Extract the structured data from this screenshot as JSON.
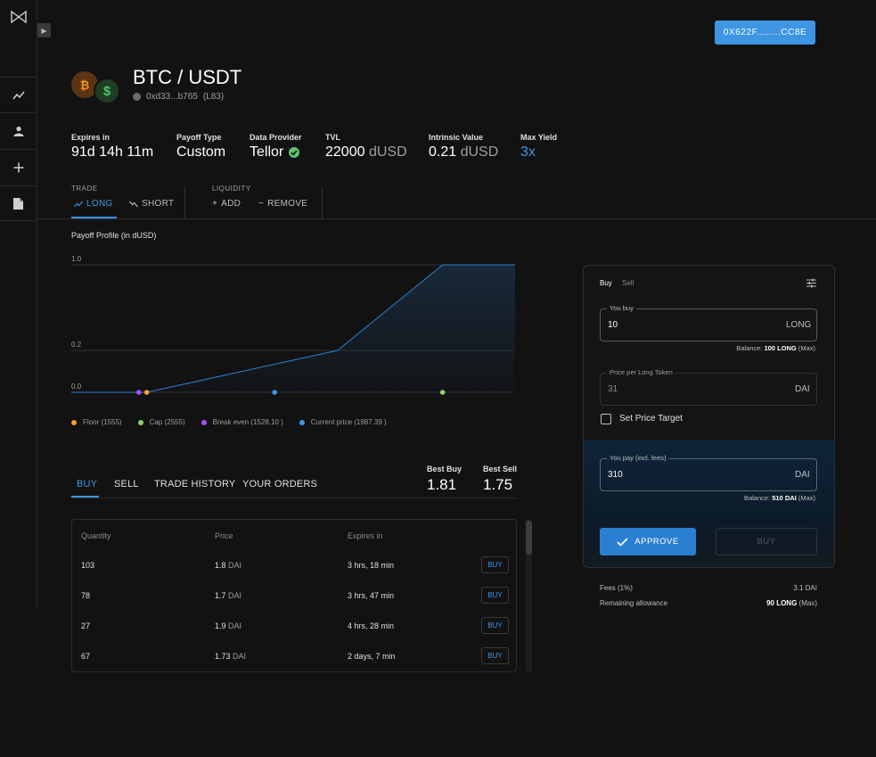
{
  "wallet": {
    "address": "0X622F........CC8E"
  },
  "header": {
    "pair": "BTC / USDT",
    "address": "0xd33...b765",
    "tag": "(L83)"
  },
  "stats": [
    {
      "label": "Expires in",
      "value": "91d 14h 11m",
      "unit": ""
    },
    {
      "label": "Payoff Type",
      "value": "Custom",
      "unit": ""
    },
    {
      "label": "Data Provider",
      "value": "Tellor",
      "unit": ""
    },
    {
      "label": "TVL",
      "value": "22000",
      "unit": "dUSD"
    },
    {
      "label": "Intrinsic Value",
      "value": "0.21",
      "unit": "dUSD"
    },
    {
      "label": "Max Yield",
      "value": "3x",
      "unit": ""
    }
  ],
  "trade_group": {
    "label": "TRADE",
    "long": "LONG",
    "short": "SHORT"
  },
  "liquidity_group": {
    "label": "LIQUIDITY",
    "add": "ADD",
    "remove": "REMOVE"
  },
  "payoff_title": "Payoff Profile (in dUSD)",
  "chart_data": {
    "type": "line",
    "title": "Payoff Profile (in dUSD)",
    "y_tick_labels": [
      "0.0",
      "0.2",
      "1.0"
    ],
    "x": [
      1300,
      1555,
      2200,
      2555,
      2800
    ],
    "y": [
      0.0,
      0.0,
      0.2,
      1.0,
      1.0
    ],
    "markers": [
      {
        "name": "Floor (1555)",
        "x": 1555,
        "color": "#f59e2e"
      },
      {
        "name": "Cap (2555)",
        "x": 2555,
        "color": "#8bd36a"
      },
      {
        "name": "Break even (1528.10 )",
        "x": 1528.1,
        "color": "#a64dff"
      },
      {
        "name": "Current price (1987.39 )",
        "x": 1987.39,
        "color": "#3d95e3"
      }
    ],
    "legend_position": "bottom-left",
    "grid": true
  },
  "legend": [
    {
      "label": "Floor (1555)",
      "color": "#f59e2e"
    },
    {
      "label": "Cap (2555)",
      "color": "#8bd36a"
    },
    {
      "label": "Break even (1528.10 )",
      "color": "#a64dff"
    },
    {
      "label": "Current price (1987.39 )",
      "color": "#3d95e3"
    }
  ],
  "order_tabs": [
    "BUY",
    "SELL",
    "TRADE HISTORY",
    "YOUR ORDERS"
  ],
  "best": {
    "buy_label": "Best Buy",
    "buy_value": "1.81",
    "sell_label": "Best Sell",
    "sell_value": "1.75"
  },
  "table": {
    "headers": [
      "Quantity",
      "Price",
      "Expires in"
    ],
    "unit": "DAI",
    "action": "BUY",
    "rows": [
      {
        "quantity": "103",
        "price": "1.8",
        "expires": "3 hrs, 18 min"
      },
      {
        "quantity": "78",
        "price": "1.7",
        "expires": "3 hrs, 47 min"
      },
      {
        "quantity": "27",
        "price": "1.9",
        "expires": "4 hrs, 28 min"
      },
      {
        "quantity": "67",
        "price": "1.73",
        "expires": "2 days, 7 min"
      }
    ]
  },
  "panel": {
    "tab_buy": "Buy",
    "tab_sell": "Sell",
    "you_buy_label": "You buy",
    "you_buy_value": "10",
    "you_buy_unit": "LONG",
    "balance1_prefix": "Balance:",
    "balance1_value": "100 LONG",
    "balance1_suffix": "(Max)",
    "price_label": "Price per Long Token",
    "price_value": "31",
    "price_unit": "DAI",
    "set_price_target": "Set Price Target",
    "you_pay_label": "You pay (incl. fees)",
    "you_pay_value": "310",
    "you_pay_unit": "DAI",
    "balance2_prefix": "Balance:",
    "balance2_value": "510 DAI",
    "balance2_suffix": "(Max)",
    "approve": "APPROVE",
    "buy": "BUY"
  },
  "fees": {
    "fees_label": "Fees (1%)",
    "fees_value": "3.1 DAI",
    "allowance_label": "Remaining allowance",
    "allowance_value": "90 LONG",
    "allowance_suffix": "(Max)"
  }
}
